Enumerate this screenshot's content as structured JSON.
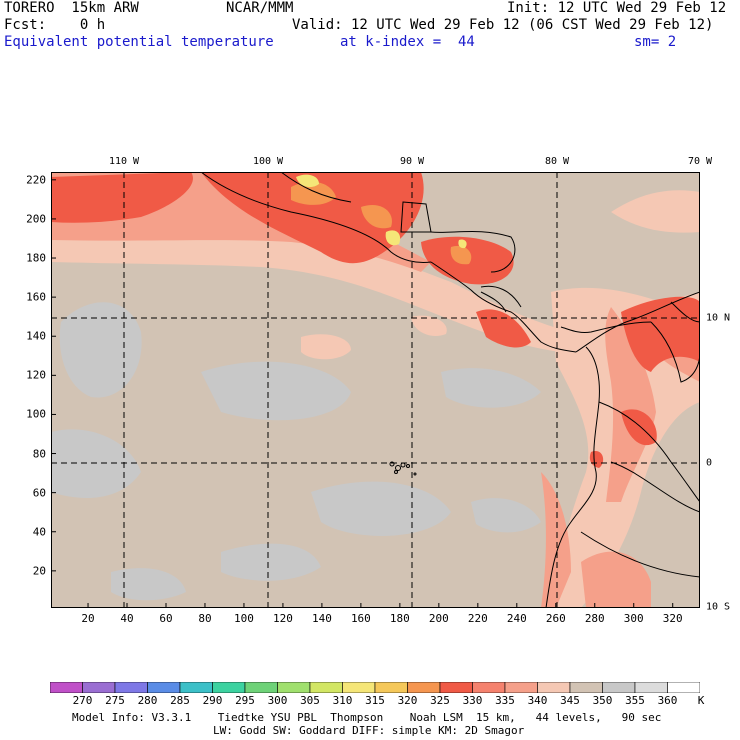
{
  "header": {
    "model": "TORERO  15km ARW",
    "org": "NCAR/MMM",
    "init": "Init: 12 UTC Wed 29 Feb 12",
    "fcst": "Fcst:    0 h",
    "valid": "Valid: 12 UTC Wed 29 Feb 12 (06 CST Wed 29 Feb 12)",
    "field": "Equivalent potential temperature",
    "level": "at k-index =  44",
    "smooth": "sm= 2"
  },
  "map": {
    "x_ticks": [
      "20",
      "40",
      "60",
      "80",
      "100",
      "120",
      "140",
      "160",
      "180",
      "200",
      "220",
      "240",
      "260",
      "280",
      "300",
      "320"
    ],
    "y_ticks": [
      "20",
      "40",
      "60",
      "80",
      "100",
      "120",
      "140",
      "160",
      "180",
      "200",
      "220"
    ],
    "lon_labels": [
      "110 W",
      "100 W",
      "90 W",
      "80 W",
      "70 W"
    ],
    "lat_labels": [
      "10 N",
      "0",
      "10 S"
    ],
    "grid_x_range": [
      1,
      334
    ],
    "grid_y_range": [
      1,
      224
    ]
  },
  "colorbar": {
    "unit": "K",
    "labels": [
      "270",
      "275",
      "280",
      "285",
      "290",
      "295",
      "300",
      "305",
      "310",
      "315",
      "320",
      "325",
      "330",
      "335",
      "340",
      "345",
      "350",
      "355",
      "360"
    ],
    "colors": [
      "#c050c8",
      "#9a6ed2",
      "#7e78e6",
      "#5a8ce6",
      "#3cc0c8",
      "#3cd2a0",
      "#6ed278",
      "#a0e06e",
      "#d2e664",
      "#f5e678",
      "#f5c85a",
      "#f59650",
      "#f05a46",
      "#f5826e",
      "#f5a08a",
      "#f5c8b4",
      "#d2c3b4",
      "#c8c8c8",
      "#dcdcdc",
      "#ffffff"
    ]
  },
  "footer": {
    "line1": "Model Info: V3.3.1    Tiedtke YSU PBL  Thompson    Noah LSM  15 km,   44 levels,   90 sec",
    "line2": "LW: Godd SW: Goddard DIFF: simple KM: 2D Smagor"
  }
}
